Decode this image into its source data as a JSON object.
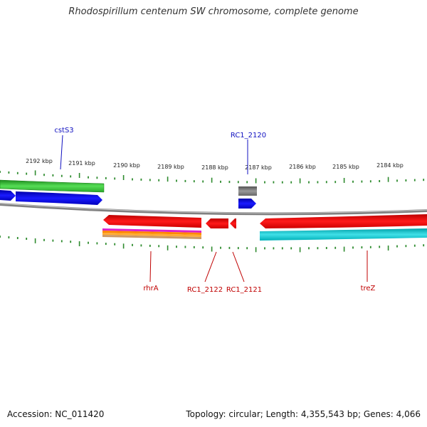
{
  "title": "Rhodospirillum centenum SW chromosome, complete genome",
  "footer": {
    "accession": "Accession: NC_011420",
    "topology": "Topology: circular",
    "length": "Length: 4,355,543 bp",
    "genes": "Genes: 4,066"
  },
  "colors": {
    "backbone": "#808080",
    "tick": "#2e8b2e",
    "forward_label": "#1010c0",
    "reverse_label": "#c00000"
  },
  "scale": {
    "unit": "kbp",
    "labels": [
      "2192 kbp",
      "2191 kbp",
      "2190 kbp",
      "2189 kbp",
      "2188 kbp",
      "2187 kbp",
      "2186 kbp",
      "2185 kbp",
      "2184 kbp"
    ]
  },
  "gene_labels": {
    "forward": [
      "cstS3",
      "RC1_2120"
    ],
    "reverse": [
      "rhrA",
      "RC1_2122",
      "RC1_2121",
      "treZ"
    ]
  }
}
